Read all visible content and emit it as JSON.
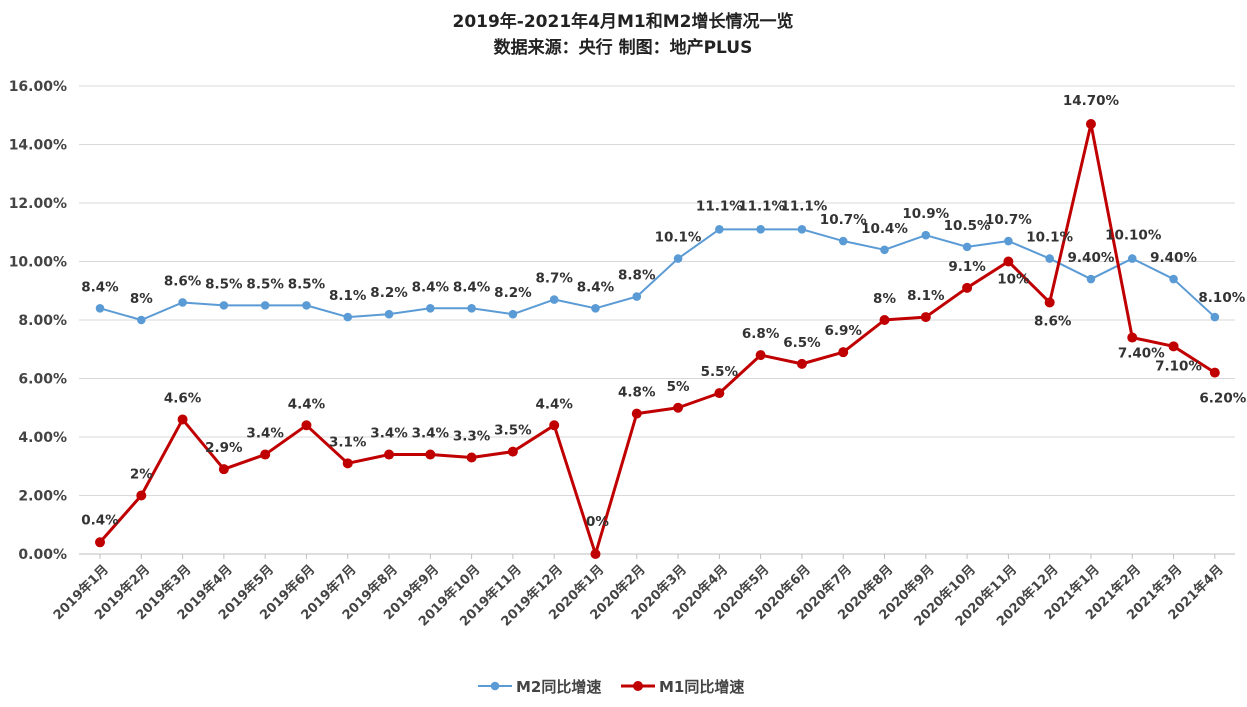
{
  "chart_data": {
    "type": "line",
    "title": "2019年-2021年4月M1和M2增长情况一览",
    "subtitle": "数据来源：央行 制图：地产PLUS",
    "categories": [
      "2019年1月",
      "2019年2月",
      "2019年3月",
      "2019年4月",
      "2019年5月",
      "2019年6月",
      "2019年7月",
      "2019年8月",
      "2019年9月",
      "2019年10月",
      "2019年11月",
      "2019年12月",
      "2020年1月",
      "2020年2月",
      "2020年3月",
      "2020年4月",
      "2020年5月",
      "2020年6月",
      "2020年7月",
      "2020年8月",
      "2020年9月",
      "2020年10月",
      "2020年11月",
      "2020年12月",
      "2021年1月",
      "2021年2月",
      "2021年3月",
      "2021年4月"
    ],
    "ylim": [
      0,
      16
    ],
    "yticks": [
      "0.00%",
      "2.00%",
      "4.00%",
      "6.00%",
      "8.00%",
      "10.00%",
      "12.00%",
      "14.00%",
      "16.00%"
    ],
    "grid": true,
    "legend_position": "bottom",
    "series": [
      {
        "name": "M2同比增速",
        "color": "#5B9BD5",
        "values": [
          8.4,
          8.0,
          8.6,
          8.5,
          8.5,
          8.5,
          8.1,
          8.2,
          8.4,
          8.4,
          8.2,
          8.7,
          8.4,
          8.8,
          10.1,
          11.1,
          11.1,
          11.1,
          10.7,
          10.4,
          10.9,
          10.5,
          10.7,
          10.1,
          9.4,
          10.1,
          9.4,
          8.1
        ],
        "labels": [
          "8.4%",
          "8%",
          "8.6%",
          "8.5%",
          "8.5%",
          "8.5%",
          "8.1%",
          "8.2%",
          "8.4%",
          "8.4%",
          "8.2%",
          "8.7%",
          "8.4%",
          "8.8%",
          "10.1%",
          "11.1%",
          "11.1%",
          "11.1%",
          "10.7%",
          "10.4%",
          "10.9%",
          "10.5%",
          "10.7%",
          "10.1%",
          "9.40%",
          "10.10%",
          "9.40%",
          "8.10%"
        ]
      },
      {
        "name": "M1同比增速",
        "color": "#C00000",
        "values": [
          0.4,
          2.0,
          4.6,
          2.9,
          3.4,
          4.4,
          3.1,
          3.4,
          3.4,
          3.3,
          3.5,
          4.4,
          0.0,
          4.8,
          5.0,
          5.5,
          6.8,
          6.5,
          6.9,
          8.0,
          8.1,
          9.1,
          10.0,
          8.6,
          14.7,
          7.4,
          7.1,
          6.2
        ],
        "labels": [
          "0.4%",
          "2%",
          "4.6%",
          "2.9%",
          "3.4%",
          "4.4%",
          "3.1%",
          "3.4%",
          "3.4%",
          "3.3%",
          "3.5%",
          "4.4%",
          "0%",
          "4.8%",
          "5%",
          "5.5%",
          "6.8%",
          "6.5%",
          "6.9%",
          "8%",
          "8.1%",
          "9.1%",
          "10%",
          "8.6%",
          "14.70%",
          "7.40%",
          "7.10%",
          "6.20%"
        ]
      }
    ]
  }
}
